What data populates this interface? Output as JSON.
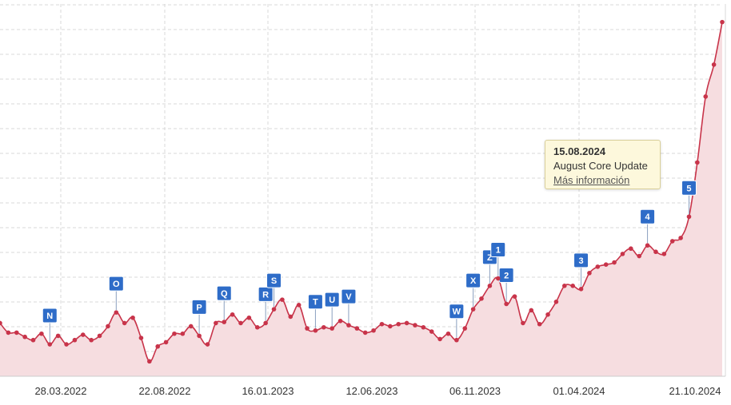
{
  "chart_data": {
    "type": "area",
    "x_tick_labels": [
      "28.03.2022",
      "22.08.2022",
      "16.01.2023",
      "12.06.2023",
      "06.11.2023",
      "01.04.2024",
      "21.10.2024"
    ],
    "grid": true,
    "colors": {
      "line": "#c8344a",
      "fill": "#f6dde0",
      "marker": "#2e6cc8",
      "grid": "#d9d9d9"
    },
    "series": [
      {
        "values": [
          0.5,
          0.41,
          0.41,
          0.37,
          0.34,
          0.4,
          0.3,
          0.38,
          0.3,
          0.34,
          0.39,
          0.34,
          0.38,
          0.47,
          0.6,
          0.5,
          0.55,
          0.36,
          0.14,
          0.28,
          0.32,
          0.4,
          0.4,
          0.47,
          0.38,
          0.3,
          0.5,
          0.51,
          0.58,
          0.5,
          0.55,
          0.46,
          0.5,
          0.63,
          0.72,
          0.56,
          0.67,
          0.45,
          0.43,
          0.46,
          0.45,
          0.52,
          0.48,
          0.45,
          0.41,
          0.43,
          0.49,
          0.47,
          0.49,
          0.5,
          0.48,
          0.46,
          0.42,
          0.35,
          0.4,
          0.34,
          0.45,
          0.63,
          0.73,
          0.85,
          0.92,
          0.68,
          0.75,
          0.5,
          0.62,
          0.49,
          0.58,
          0.7,
          0.85,
          0.85,
          0.82,
          0.97,
          1.03,
          1.05,
          1.07,
          1.15,
          1.2,
          1.13,
          1.23,
          1.17,
          1.15,
          1.27,
          1.3,
          1.5,
          2.01,
          2.63,
          2.93,
          3.33
        ]
      }
    ],
    "ylim": [
      0,
      3.5
    ],
    "markers": [
      {
        "label": "N",
        "index": 6
      },
      {
        "label": "O",
        "index": 14
      },
      {
        "label": "P",
        "index": 24
      },
      {
        "label": "Q",
        "index": 27
      },
      {
        "label": "R",
        "index": 32
      },
      {
        "label": "S",
        "index": 33
      },
      {
        "label": "T",
        "index": 38
      },
      {
        "label": "U",
        "index": 40
      },
      {
        "label": "V",
        "index": 42
      },
      {
        "label": "W",
        "index": 55
      },
      {
        "label": "X",
        "index": 57
      },
      {
        "label": "Z",
        "index": 59
      },
      {
        "label": "1",
        "index": 60
      },
      {
        "label": "2",
        "index": 61
      },
      {
        "label": "3",
        "index": 70
      },
      {
        "label": "4",
        "index": 78
      },
      {
        "label": "5",
        "index": 83
      }
    ]
  },
  "tooltip": {
    "date": "15.08.2024",
    "title": "August Core Update",
    "link_label": "Más información"
  }
}
